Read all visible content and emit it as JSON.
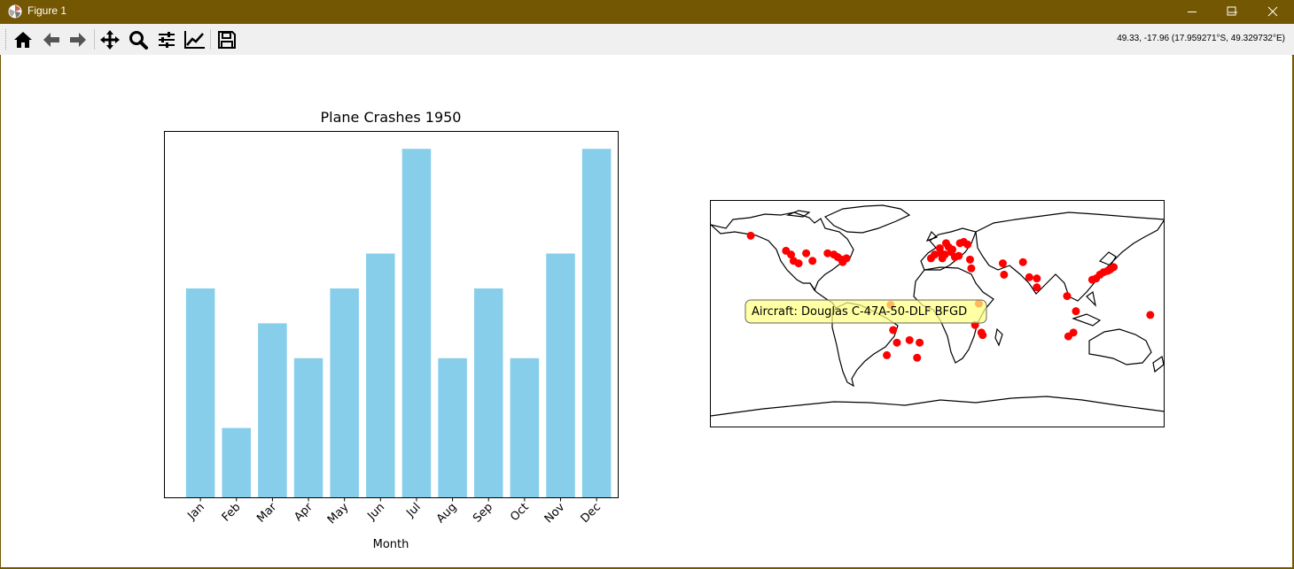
{
  "window": {
    "title": "Figure 1",
    "icon": "matplotlib-icon"
  },
  "toolbar": {
    "buttons": [
      "home-icon",
      "back-icon",
      "forward-icon",
      "pan-icon",
      "zoom-icon",
      "configure-subplots-icon",
      "edit-axes-icon",
      "save-icon"
    ],
    "coords": "49.33, -17.96 (17.959271°S, 49.329732°E)"
  },
  "colors": {
    "bar": "#87ceeb",
    "marker": "#ff0000",
    "tooltip_bg": "#ffff80",
    "titlebar": "#745703"
  },
  "chart_data": [
    {
      "type": "bar",
      "title": "Plane Crashes 1950",
      "xlabel": "Month",
      "ylabel": "",
      "categories": [
        "Jan",
        "Feb",
        "Mar",
        "Apr",
        "May",
        "Jun",
        "Jul",
        "Aug",
        "Sep",
        "Oct",
        "Nov",
        "Dec"
      ],
      "values": [
        6,
        2,
        5,
        4,
        6,
        7,
        10,
        4,
        6,
        4,
        7,
        10
      ],
      "ylim": [
        0,
        10.5
      ],
      "yticks_visible": false,
      "grid": false
    },
    {
      "type": "scatter",
      "projection": "equirectangular world map",
      "xlim": [
        -180,
        180
      ],
      "ylim": [
        -90,
        90
      ],
      "marker_color": "#ff0000",
      "points": [
        [
          -148,
          62
        ],
        [
          -120,
          50
        ],
        [
          -116,
          47
        ],
        [
          -114,
          42
        ],
        [
          -110,
          40
        ],
        [
          -104,
          48
        ],
        [
          -99,
          42
        ],
        [
          -87,
          48
        ],
        [
          -82,
          47
        ],
        [
          -79,
          45
        ],
        [
          -76,
          43
        ],
        [
          -75,
          41
        ],
        [
          -72,
          44
        ],
        [
          -37,
          7
        ],
        [
          -35,
          -13
        ],
        [
          -32,
          -23
        ],
        [
          -40,
          -33
        ],
        [
          -22,
          -21
        ],
        [
          -14,
          -23
        ],
        [
          -16,
          -35
        ],
        [
          -5,
          44
        ],
        [
          -2,
          47
        ],
        [
          2,
          52
        ],
        [
          3,
          48
        ],
        [
          4,
          44
        ],
        [
          6,
          47
        ],
        [
          7,
          56
        ],
        [
          9,
          53
        ],
        [
          11,
          49
        ],
        [
          12,
          51
        ],
        [
          14,
          45
        ],
        [
          17,
          46
        ],
        [
          18,
          56
        ],
        [
          21,
          57
        ],
        [
          24,
          55
        ],
        [
          26,
          43
        ],
        [
          27,
          36
        ],
        [
          33,
          8
        ],
        [
          30,
          -9
        ],
        [
          35,
          -15
        ],
        [
          36,
          -17
        ],
        [
          52,
          40
        ],
        [
          53,
          31
        ],
        [
          68,
          41
        ],
        [
          73,
          29
        ],
        [
          79,
          28
        ],
        [
          79,
          21
        ],
        [
          103,
          14
        ],
        [
          108,
          -15
        ],
        [
          104,
          -18
        ],
        [
          110,
          2
        ],
        [
          123,
          27
        ],
        [
          126,
          28
        ],
        [
          129,
          31
        ],
        [
          132,
          33
        ],
        [
          135,
          34
        ],
        [
          137,
          35
        ],
        [
          138,
          36
        ],
        [
          140,
          37
        ],
        [
          169,
          -1
        ]
      ],
      "tooltip": "Aircraft: Douglas C-47A-50-DLF BFGD",
      "tooltip_anchor": [
        -37,
        7
      ]
    }
  ]
}
